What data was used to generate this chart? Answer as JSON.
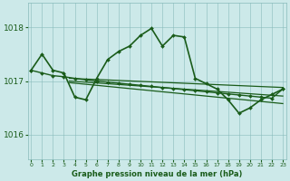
{
  "background_color": "#cce9e9",
  "grid_color": "#88bbbb",
  "line_color": "#1a5c1a",
  "title": "Graphe pression niveau de la mer (hPa)",
  "ylim": [
    1015.55,
    1018.45
  ],
  "yticks": [
    1016,
    1017,
    1018
  ],
  "xlim": [
    -0.3,
    23.3
  ],
  "xticks": [
    0,
    1,
    2,
    3,
    4,
    5,
    6,
    7,
    8,
    9,
    10,
    11,
    12,
    13,
    14,
    15,
    16,
    17,
    18,
    19,
    20,
    21,
    22,
    23
  ],
  "series": [
    {
      "x": [
        0,
        1,
        2,
        3,
        4,
        5,
        6,
        7,
        8,
        9,
        10,
        11,
        12,
        13,
        14,
        15,
        16,
        17,
        18,
        19,
        20,
        21,
        22,
        23
      ],
      "y": [
        1017.2,
        1017.5,
        1017.2,
        1017.15,
        1016.7,
        1016.65,
        1017.05,
        1017.4,
        1017.55,
        1017.65,
        1017.85,
        1017.98,
        1017.65,
        1017.85,
        1017.82,
        1017.05,
        1016.95,
        1016.85,
        1016.65,
        1016.4,
        1016.5,
        1016.65,
        1016.75,
        1016.85
      ],
      "marker": true,
      "linewidth": 1.2
    },
    {
      "x": [
        0,
        1,
        2,
        3,
        4,
        5,
        6,
        7,
        8,
        9,
        10,
        11,
        12,
        13,
        14,
        15,
        16,
        17,
        18,
        19,
        20,
        21,
        22,
        23
      ],
      "y": [
        1017.2,
        1017.15,
        1017.1,
        1017.08,
        1017.05,
        1017.02,
        1017.0,
        1016.98,
        1016.96,
        1016.94,
        1016.92,
        1016.9,
        1016.88,
        1016.86,
        1016.84,
        1016.82,
        1016.8,
        1016.78,
        1016.76,
        1016.74,
        1016.72,
        1016.7,
        1016.68,
        1016.85
      ],
      "marker": true,
      "linewidth": 1.0
    },
    {
      "x": [
        3.5,
        23
      ],
      "y": [
        1017.05,
        1016.88
      ],
      "marker": false,
      "linewidth": 0.9
    },
    {
      "x": [
        3.5,
        23
      ],
      "y": [
        1017.0,
        1016.72
      ],
      "marker": false,
      "linewidth": 0.9
    },
    {
      "x": [
        3.5,
        23
      ],
      "y": [
        1016.97,
        1016.58
      ],
      "marker": false,
      "linewidth": 0.9
    }
  ]
}
